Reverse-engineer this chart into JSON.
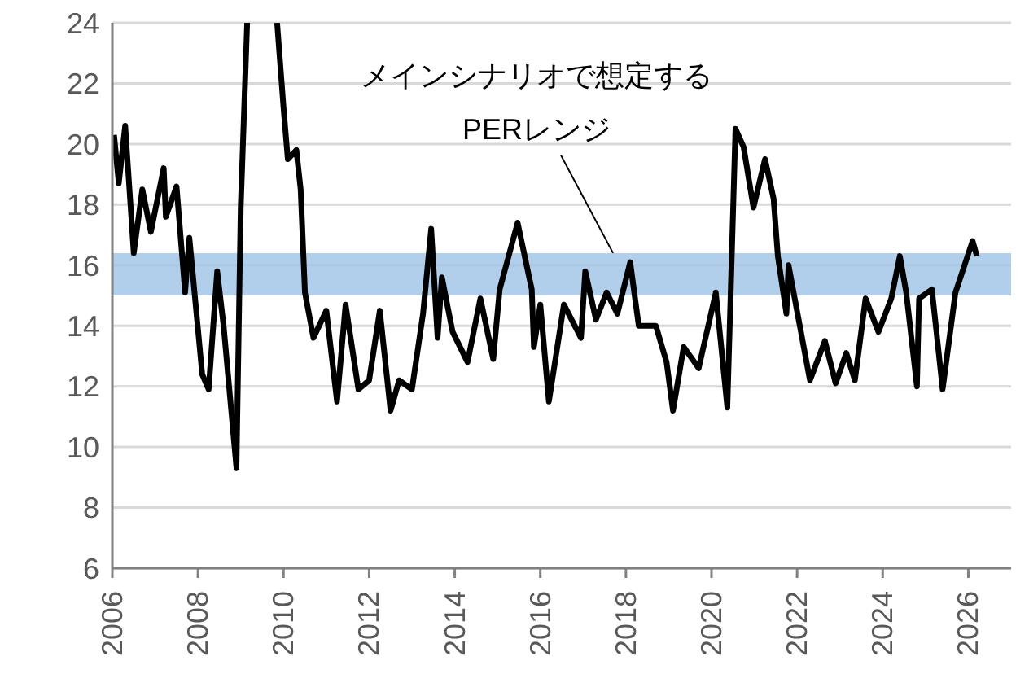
{
  "chart_data": {
    "type": "line",
    "x": [
      2006.04,
      2006.15,
      2006.3,
      2006.5,
      2006.7,
      2006.9,
      2007.2,
      2007.25,
      2007.5,
      2007.7,
      2007.8,
      2008.1,
      2008.25,
      2008.45,
      2008.6,
      2008.9,
      2009.0,
      2009.15,
      2009.5,
      2009.85,
      2010.0,
      2010.1,
      2010.3,
      2010.4,
      2010.5,
      2010.7,
      2011.0,
      2011.25,
      2011.45,
      2011.75,
      2012.0,
      2012.25,
      2012.5,
      2012.7,
      2013.0,
      2013.26,
      2013.45,
      2013.6,
      2013.7,
      2013.95,
      2014.3,
      2014.6,
      2014.9,
      2015.05,
      2015.47,
      2015.8,
      2015.85,
      2016.0,
      2016.2,
      2016.55,
      2016.95,
      2017.05,
      2017.3,
      2017.55,
      2017.8,
      2018.1,
      2018.3,
      2018.7,
      2018.95,
      2019.1,
      2019.35,
      2019.7,
      2020.1,
      2020.37,
      2020.56,
      2020.75,
      2020.98,
      2021.25,
      2021.45,
      2021.55,
      2021.75,
      2021.8,
      2022.3,
      2022.65,
      2022.9,
      2023.15,
      2023.35,
      2023.6,
      2023.9,
      2024.2,
      2024.4,
      2024.55,
      2024.8,
      2024.85,
      2025.15,
      2025.4,
      2025.7,
      2026.1,
      2026.2
    ],
    "series": [
      {
        "color": "#000000",
        "values": [
          20.3,
          18.7,
          20.6,
          16.4,
          18.5,
          17.1,
          19.2,
          17.6,
          18.6,
          15.1,
          16.9,
          12.4,
          11.9,
          15.8,
          14.0,
          9.3,
          17.9,
          24,
          null,
          24,
          21.2,
          19.5,
          19.8,
          18.5,
          15.1,
          13.6,
          14.5,
          11.5,
          14.7,
          11.9,
          12.2,
          14.5,
          11.2,
          12.2,
          11.9,
          14.4,
          17.2,
          13.6,
          15.6,
          13.8,
          12.8,
          14.9,
          12.9,
          15.2,
          17.4,
          15.2,
          13.3,
          14.7,
          11.5,
          14.7,
          13.6,
          15.8,
          14.2,
          15.1,
          14.4,
          16.1,
          14.0,
          14.0,
          12.8,
          11.2,
          13.3,
          12.6,
          15.1,
          11.3,
          20.5,
          19.9,
          17.9,
          19.5,
          18.2,
          16.3,
          14.4,
          16.0,
          12.2,
          13.5,
          12.1,
          13.1,
          12.2,
          14.9,
          13.8,
          14.9,
          16.3,
          15.1,
          12.0,
          14.9,
          15.2,
          11.9,
          15.1,
          16.8,
          16.3
        ]
      }
    ],
    "xlim": [
      2006,
      2027
    ],
    "xticks": [
      2006,
      2008,
      2010,
      2012,
      2014,
      2016,
      2018,
      2020,
      2022,
      2024,
      2026
    ],
    "ylim": [
      6,
      24
    ],
    "yticks": [
      6,
      8,
      10,
      12,
      14,
      16,
      18,
      20,
      22,
      24
    ],
    "grid": "y",
    "marker": "none",
    "line_style": "solid",
    "bands": [
      {
        "axis": "y",
        "from": 15,
        "to": 16.4,
        "color": "#9dc3e6"
      }
    ],
    "annotations": [
      {
        "text": "メインシナリオで想定する\nPERレンジ",
        "x": 2017.7,
        "y": 16.4
      }
    ]
  }
}
